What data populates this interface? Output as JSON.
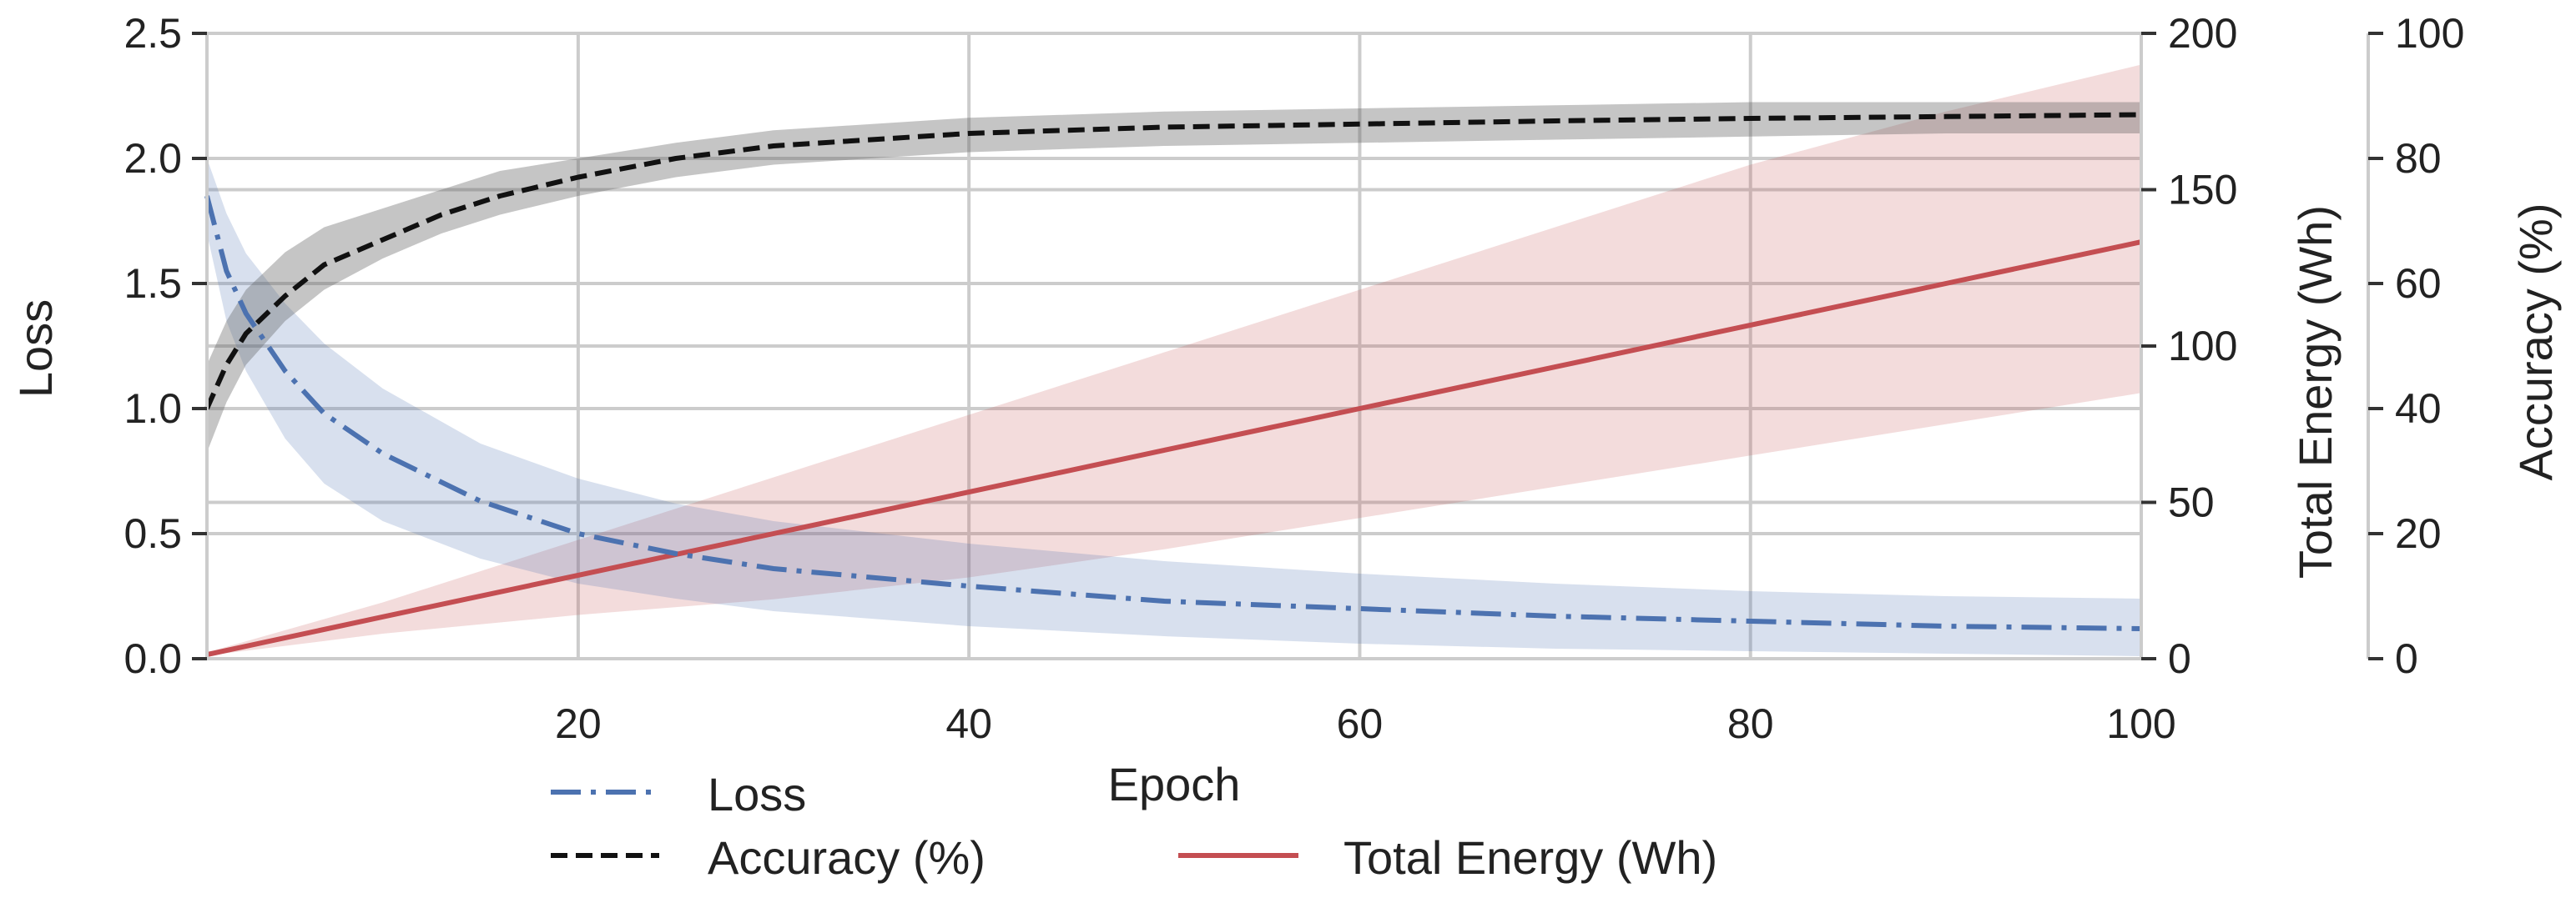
{
  "chart_data": {
    "type": "line",
    "xlabel": "Epoch",
    "x_range": [
      1,
      100
    ],
    "x_ticks": [
      20,
      40,
      60,
      80,
      100
    ],
    "axes": {
      "loss": {
        "label": "Loss",
        "range": [
          0,
          2.5
        ],
        "ticks": [
          "0.0",
          "0.5",
          "1.0",
          "1.5",
          "2.0",
          "2.5"
        ]
      },
      "energy": {
        "label": "Total Energy (Wh)",
        "range": [
          0,
          200
        ],
        "ticks": [
          "0",
          "50",
          "100",
          "150",
          "200"
        ]
      },
      "accuracy": {
        "label": "Accuracy (%)",
        "range": [
          0,
          100
        ],
        "ticks": [
          "0",
          "20",
          "40",
          "60",
          "80",
          "100"
        ]
      }
    },
    "series": [
      {
        "name": "Loss",
        "axis": "loss",
        "style": "dashdot",
        "color": "#4c72b0",
        "x": [
          1,
          2,
          3,
          5,
          7,
          10,
          15,
          20,
          25,
          30,
          40,
          50,
          60,
          70,
          80,
          90,
          100
        ],
        "values": [
          1.85,
          1.55,
          1.38,
          1.15,
          0.98,
          0.82,
          0.63,
          0.5,
          0.42,
          0.36,
          0.29,
          0.23,
          0.2,
          0.17,
          0.15,
          0.13,
          0.12
        ],
        "band_lower": [
          1.7,
          1.35,
          1.15,
          0.88,
          0.7,
          0.55,
          0.4,
          0.3,
          0.24,
          0.19,
          0.13,
          0.09,
          0.06,
          0.04,
          0.03,
          0.02,
          0.01
        ],
        "band_upper": [
          2.0,
          1.78,
          1.62,
          1.42,
          1.26,
          1.08,
          0.86,
          0.72,
          0.62,
          0.55,
          0.46,
          0.39,
          0.34,
          0.3,
          0.27,
          0.25,
          0.24
        ]
      },
      {
        "name": "Accuracy (%)",
        "axis": "accuracy",
        "style": "dashed",
        "color": "#111111",
        "x": [
          1,
          2,
          3,
          5,
          7,
          10,
          13,
          16,
          20,
          25,
          30,
          40,
          50,
          60,
          70,
          80,
          90,
          100
        ],
        "values": [
          40,
          47,
          52,
          58,
          63,
          67,
          71,
          74,
          77,
          80,
          82,
          84,
          85,
          85.5,
          86,
          86.4,
          86.7,
          87
        ],
        "band_lower": [
          33,
          41,
          47,
          54,
          59,
          64,
          68,
          71,
          74,
          77,
          79,
          81,
          82,
          82.5,
          83,
          83.5,
          84,
          84
        ],
        "band_upper": [
          47,
          54,
          59,
          65,
          69,
          72,
          75,
          78,
          80,
          82.5,
          84.5,
          86.5,
          87.5,
          88,
          88.5,
          89,
          89,
          89
        ]
      },
      {
        "name": "Total Energy (Wh)",
        "axis": "energy",
        "style": "solid",
        "color": "#c44e52",
        "x": [
          1,
          10,
          20,
          30,
          40,
          50,
          60,
          70,
          80,
          90,
          100
        ],
        "values": [
          1.3,
          13.4,
          26.7,
          40.0,
          53.3,
          66.7,
          80.0,
          93.3,
          106.7,
          120.0,
          133.3
        ],
        "band_lower": [
          1.0,
          8,
          14,
          19,
          26,
          35,
          45,
          55,
          65,
          75,
          85
        ],
        "band_upper": [
          2.0,
          18,
          38,
          58,
          78,
          98,
          118,
          138,
          158,
          175,
          190
        ]
      }
    ],
    "legend": [
      "Loss",
      "Accuracy (%)",
      "Total Energy (Wh)"
    ],
    "legend_position": "bottom",
    "grid": true
  }
}
